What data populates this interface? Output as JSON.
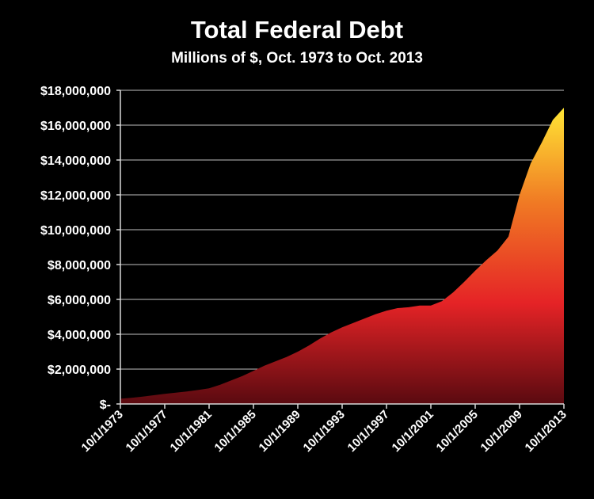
{
  "chart_data": {
    "type": "area",
    "title": "Total Federal Debt",
    "subtitle": "Millions of $, Oct. 1973 to Oct. 2013",
    "xlabel": "",
    "ylabel": "",
    "ylim": [
      0,
      18000000
    ],
    "yticks": [
      0,
      2000000,
      4000000,
      6000000,
      8000000,
      10000000,
      12000000,
      14000000,
      16000000,
      18000000
    ],
    "ytick_labels": [
      "$-",
      "$2,000,000",
      "$4,000,000",
      "$6,000,000",
      "$8,000,000",
      "$10,000,000",
      "$12,000,000",
      "$14,000,000",
      "$16,000,000",
      "$18,000,000"
    ],
    "xlim": [
      1973,
      2013
    ],
    "xticks": [
      1973,
      1977,
      1981,
      1985,
      1989,
      1993,
      1997,
      2001,
      2005,
      2009,
      2013
    ],
    "xtick_labels": [
      "10/1/1973",
      "10/1/1977",
      "10/1/1981",
      "10/1/1985",
      "10/1/1989",
      "10/1/1993",
      "10/1/1997",
      "10/1/2001",
      "10/1/2005",
      "10/1/2009",
      "10/1/2013"
    ],
    "grid": true,
    "legend": "none",
    "x": [
      1973,
      1974,
      1975,
      1976,
      1977,
      1978,
      1979,
      1980,
      1981,
      1982,
      1983,
      1984,
      1985,
      1986,
      1987,
      1988,
      1989,
      1990,
      1991,
      1992,
      1993,
      1994,
      1995,
      1996,
      1997,
      1998,
      1999,
      2000,
      2001,
      2002,
      2003,
      2004,
      2005,
      2006,
      2007,
      2008,
      2009,
      2010,
      2011,
      2012,
      2013
    ],
    "values": [
      300000,
      350000,
      420000,
      500000,
      580000,
      650000,
      720000,
      800000,
      900000,
      1100000,
      1350000,
      1600000,
      1900000,
      2200000,
      2450000,
      2700000,
      3000000,
      3350000,
      3750000,
      4100000,
      4400000,
      4650000,
      4900000,
      5150000,
      5350000,
      5500000,
      5550000,
      5650000,
      5650000,
      5900000,
      6400000,
      7000000,
      7650000,
      8250000,
      8800000,
      9600000,
      12000000,
      13800000,
      15000000,
      16300000,
      17000000
    ],
    "colors": {
      "bottom": "#5a0a10",
      "mid": "#e52326",
      "upper": "#f07a24",
      "top": "#ffe534",
      "grid": "#bfbfbf"
    }
  }
}
